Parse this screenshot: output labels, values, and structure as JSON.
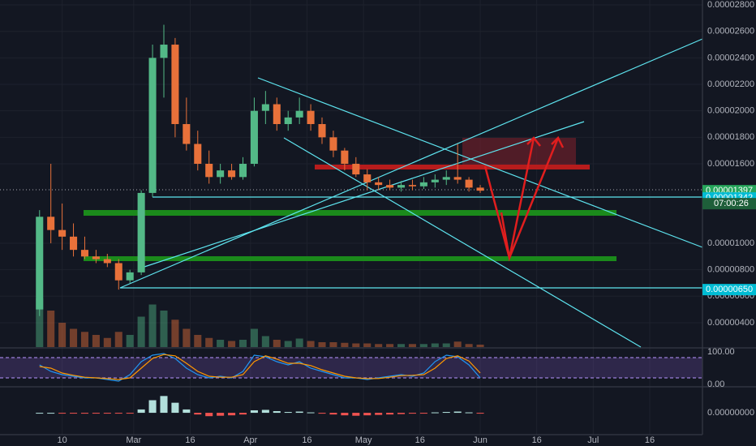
{
  "chart_data": {
    "type": "candlestick",
    "x": [
      -25,
      -22,
      -19,
      -16,
      -13,
      -10,
      -7,
      -4,
      -1,
      2,
      5,
      8,
      11,
      14,
      17,
      20,
      23,
      26,
      29,
      32,
      35,
      38,
      41,
      44,
      47,
      50,
      53,
      56,
      59,
      62,
      65,
      68,
      71,
      74,
      77,
      80,
      83,
      86,
      89,
      92
    ],
    "open": [
      5e-06,
      1.2e-05,
      1.1e-05,
      1.05e-05,
      9.5e-06,
      9e-06,
      8.8e-06,
      8.5e-06,
      7.2e-06,
      7.8e-06,
      1.38e-05,
      2.4e-05,
      2.5e-05,
      1.9e-05,
      1.75e-05,
      1.6e-05,
      1.5e-05,
      1.55e-05,
      1.5e-05,
      1.6e-05,
      2e-05,
      2.05e-05,
      1.9e-05,
      1.95e-05,
      2e-05,
      1.9e-05,
      1.8e-05,
      1.7e-05,
      1.6e-05,
      1.52e-05,
      1.46e-05,
      1.44e-05,
      1.42e-05,
      1.44e-05,
      1.43e-05,
      1.46e-05,
      1.48e-05,
      1.5e-05,
      1.48e-05,
      1.42e-05
    ],
    "high": [
      1.25e-05,
      1.6e-05,
      1.3e-05,
      1.15e-05,
      1.05e-05,
      9.5e-06,
      9.2e-06,
      8.8e-06,
      8e-06,
      1.4e-05,
      2.5e-05,
      2.65e-05,
      2.55e-05,
      2.1e-05,
      1.85e-05,
      1.7e-05,
      1.6e-05,
      1.6e-05,
      1.65e-05,
      2.1e-05,
      2.15e-05,
      2.1e-05,
      2e-05,
      2.1e-05,
      2.05e-05,
      1.95e-05,
      1.85e-05,
      1.72e-05,
      1.65e-05,
      1.56e-05,
      1.5e-05,
      1.48e-05,
      1.47e-05,
      1.48e-05,
      1.5e-05,
      1.52e-05,
      1.55e-05,
      1.75e-05,
      1.5e-05,
      1.44e-05
    ],
    "low": [
      4.5e-06,
      1e-05,
      9.5e-06,
      9e-06,
      8.8e-06,
      8.5e-06,
      8.2e-06,
      6.5e-06,
      7e-06,
      7.6e-06,
      1.35e-05,
      2.1e-05,
      1.8e-05,
      1.7e-05,
      1.55e-05,
      1.45e-05,
      1.45e-05,
      1.48e-05,
      1.48e-05,
      1.58e-05,
      1.9e-05,
      1.85e-05,
      1.85e-05,
      1.9e-05,
      1.85e-05,
      1.75e-05,
      1.65e-05,
      1.55e-05,
      1.5e-05,
      1.4e-05,
      1.4e-05,
      1.4e-05,
      1.39e-05,
      1.4e-05,
      1.41e-05,
      1.42e-05,
      1.44e-05,
      1.45e-05,
      1.39e-05,
      1.38e-05
    ],
    "close": [
      1.2e-05,
      1.1e-05,
      1.05e-05,
      9.5e-06,
      9e-06,
      8.8e-06,
      8.5e-06,
      7.2e-06,
      7.8e-06,
      1.38e-05,
      2.4e-05,
      2.5e-05,
      1.9e-05,
      1.75e-05,
      1.6e-05,
      1.5e-05,
      1.55e-05,
      1.5e-05,
      1.6e-05,
      2e-05,
      2.05e-05,
      1.9e-05,
      1.95e-05,
      2e-05,
      1.9e-05,
      1.8e-05,
      1.7e-05,
      1.6e-05,
      1.52e-05,
      1.46e-05,
      1.44e-05,
      1.42e-05,
      1.44e-05,
      1.43e-05,
      1.46e-05,
      1.48e-05,
      1.5e-05,
      1.48e-05,
      1.42e-05,
      1.397e-05
    ],
    "volume": [
      80,
      60,
      40,
      30,
      25,
      20,
      15,
      25,
      20,
      50,
      70,
      60,
      45,
      30,
      20,
      15,
      12,
      10,
      12,
      30,
      18,
      12,
      10,
      14,
      10,
      8,
      8,
      7,
      6,
      6,
      5,
      5,
      5,
      5,
      5,
      6,
      6,
      9,
      5,
      4
    ],
    "up_color": "#53b987",
    "down_color": "#e8713a",
    "xlim": [
      -35.5,
      151
    ],
    "xticks": [
      {
        "value": -19,
        "label": "10"
      },
      {
        "value": 0,
        "label": "Mar"
      },
      {
        "value": 15,
        "label": "16"
      },
      {
        "value": 31,
        "label": "Apr"
      },
      {
        "value": 46,
        "label": "16"
      },
      {
        "value": 61,
        "label": "May"
      },
      {
        "value": 76,
        "label": "16"
      },
      {
        "value": 92,
        "label": "Jun"
      },
      {
        "value": 107,
        "label": "16"
      },
      {
        "value": 122,
        "label": "Jul"
      },
      {
        "value": 137,
        "label": "16"
      }
    ],
    "ylim": [
      2.16e-06,
      2.837e-05
    ],
    "yticks": [
      {
        "value": 2.8e-05,
        "label": "0.00002800"
      },
      {
        "value": 2.6e-05,
        "label": "0.00002600"
      },
      {
        "value": 2.4e-05,
        "label": "0.00002400"
      },
      {
        "value": 2.2e-05,
        "label": "0.00002200"
      },
      {
        "value": 2e-05,
        "label": "0.00002000"
      },
      {
        "value": 1.8e-05,
        "label": "0.00001800"
      },
      {
        "value": 1.6e-05,
        "label": "0.00001600"
      },
      {
        "value": 1e-05,
        "label": "0.00001000"
      },
      {
        "value": 8e-06,
        "label": "0.00000800"
      },
      {
        "value": 6e-06,
        "label": "0.00000600"
      },
      {
        "value": 4e-06,
        "label": "0.00000400"
      }
    ],
    "price_labels": [
      {
        "value": 1.397e-05,
        "label": "0.00001397",
        "color": "#26a65b"
      },
      {
        "value": 1.342e-05,
        "label": "0.00001342",
        "color": "#00bcd4"
      },
      {
        "value": 6.5e-06,
        "label": "0.00000650",
        "color": "#00bcd4"
      }
    ],
    "countdown": "07:00:26",
    "rsi": {
      "ylim": [
        0,
        100
      ],
      "yticks": [
        {
          "value": 100,
          "label": "100.00"
        },
        {
          "value": 0,
          "label": "0.00"
        }
      ],
      "series": [
        {
          "color": "#2196f3",
          "values": [
            60,
            40,
            30,
            25,
            20,
            20,
            15,
            10,
            30,
            70,
            90,
            95,
            80,
            50,
            30,
            20,
            25,
            20,
            40,
            90,
            85,
            70,
            60,
            70,
            50,
            40,
            30,
            20,
            20,
            15,
            20,
            25,
            30,
            25,
            35,
            70,
            90,
            85,
            60,
            20
          ]
        },
        {
          "color": "#ff9800",
          "values": [
            55,
            50,
            35,
            28,
            22,
            20,
            18,
            15,
            20,
            50,
            80,
            92,
            88,
            65,
            40,
            25,
            22,
            22,
            30,
            70,
            88,
            78,
            65,
            65,
            58,
            45,
            35,
            25,
            20,
            18,
            18,
            22,
            27,
            28,
            30,
            50,
            80,
            88,
            72,
            35
          ]
        }
      ]
    },
    "macd": {
      "ylim": [
        -2.6e-06,
        3e-06
      ],
      "yticks": [
        {
          "value": 0,
          "label": "0.00000000"
        }
      ],
      "hist": [
        0,
        0,
        -5e-08,
        -8e-08,
        -1e-07,
        -8e-08,
        -6e-08,
        -8e-08,
        -2e-08,
        4e-07,
        1.5e-06,
        2e-06,
        1.2e-06,
        4e-07,
        -2e-07,
        -4e-07,
        -3.5e-07,
        -3e-07,
        -2e-07,
        3e-07,
        3.5e-07,
        2e-07,
        1e-07,
        1.5e-07,
        5e-08,
        -1e-07,
        -2e-07,
        -3e-07,
        -3.5e-07,
        -3e-07,
        -2.5e-07,
        -2e-07,
        -1.5e-07,
        -1e-07,
        -5e-08,
        5e-08,
        1e-07,
        1.5e-07,
        5e-08,
        -8e-08
      ]
    }
  }
}
